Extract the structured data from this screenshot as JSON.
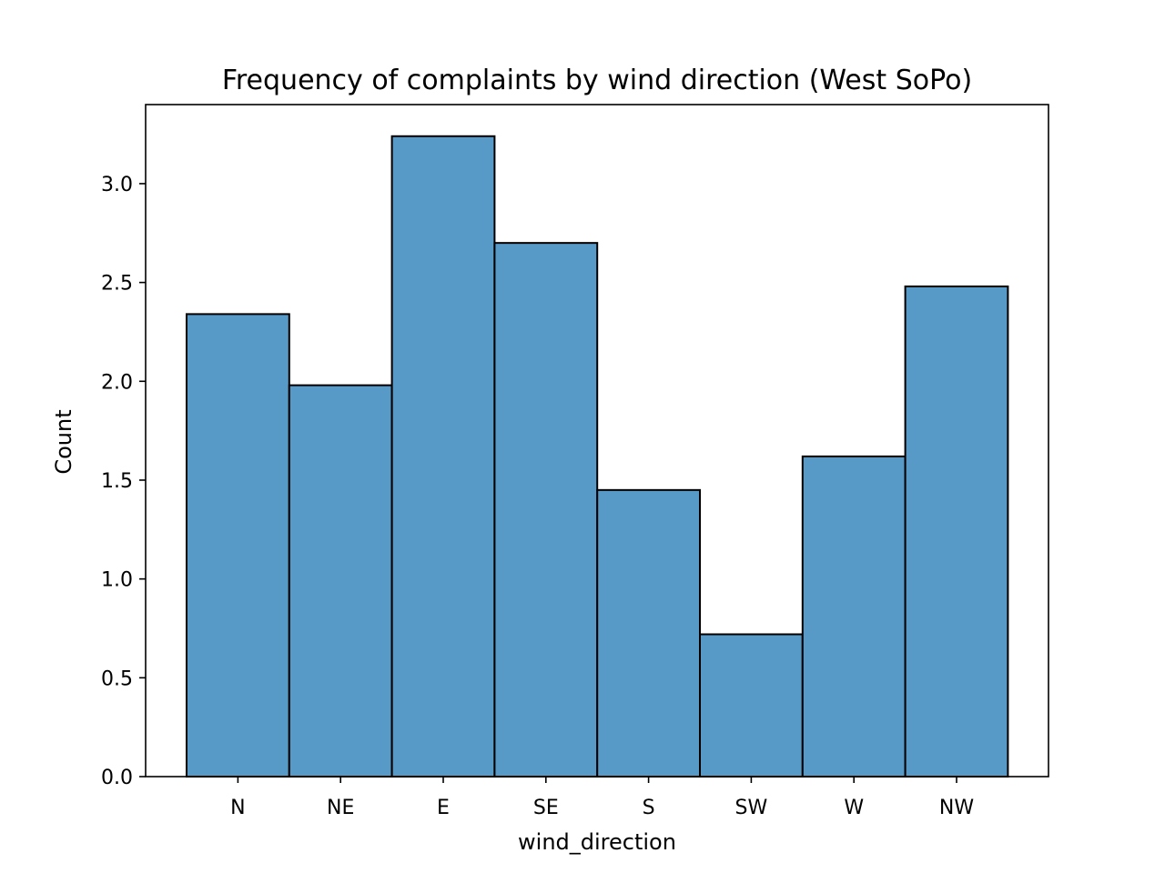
{
  "chart_data": {
    "type": "bar",
    "title": "Frequency of complaints by wind direction (West SoPo)",
    "xlabel": "wind_direction",
    "ylabel": "Count",
    "categories": [
      "N",
      "NE",
      "E",
      "SE",
      "S",
      "SW",
      "W",
      "NW"
    ],
    "values": [
      2.34,
      1.98,
      3.24,
      2.7,
      1.45,
      0.72,
      1.62,
      2.48
    ],
    "ylim": [
      0,
      3.4
    ],
    "yticks": [
      "0.0",
      "0.5",
      "1.0",
      "1.5",
      "2.0",
      "2.5",
      "3.0"
    ],
    "bar_color": "#5799c7",
    "edge_color": "#000000",
    "grid": false,
    "legend": "none"
  }
}
